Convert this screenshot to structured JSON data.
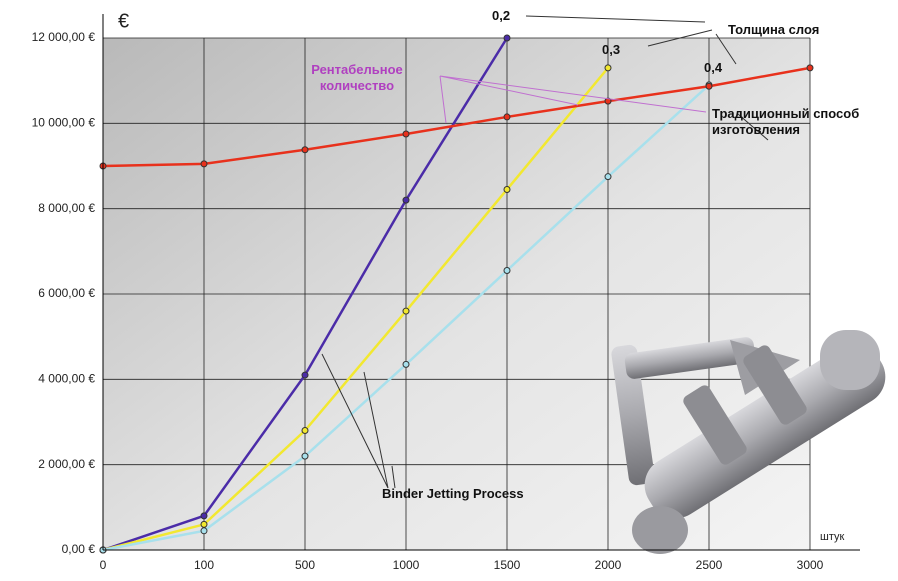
{
  "chart_data": {
    "type": "line",
    "y_unit": "€",
    "x_unit": "штук",
    "categories": [
      "0",
      "100",
      "500",
      "1000",
      "1500",
      "2000",
      "2500",
      "3000"
    ],
    "ylim": [
      0,
      12000
    ],
    "yticks": [
      {
        "value": 0,
        "label": "0,00 €"
      },
      {
        "value": 2000,
        "label": "2 000,00 €"
      },
      {
        "value": 4000,
        "label": "4 000,00 €"
      },
      {
        "value": 6000,
        "label": "6 000,00 €"
      },
      {
        "value": 8000,
        "label": "8 000,00 €"
      },
      {
        "value": 10000,
        "label": "10 000,00 €"
      },
      {
        "value": 12000,
        "label": "12 000,00 €"
      }
    ],
    "grid": true,
    "series": [
      {
        "name": "0,2",
        "color": "#4b2ca8",
        "values": [
          0,
          800,
          4100,
          8200,
          12000,
          null,
          null,
          null
        ]
      },
      {
        "name": "0,3",
        "color": "#f2e830",
        "values": [
          0,
          600,
          2800,
          5600,
          8450,
          11300,
          null,
          null
        ]
      },
      {
        "name": "0,4",
        "color": "#a8e0ec",
        "values": [
          0,
          450,
          2200,
          4350,
          6550,
          8750,
          10900,
          null
        ]
      },
      {
        "name": "Традиционный способ изготовления",
        "color": "#e8311c",
        "values": [
          9000,
          9050,
          9380,
          9750,
          10150,
          10520,
          10870,
          11300
        ]
      }
    ],
    "annotations": {
      "layer_thickness": "Толщина слоя",
      "profitable_quantity": "Рентабельное количество",
      "process": "Binder Jetting Process"
    }
  }
}
